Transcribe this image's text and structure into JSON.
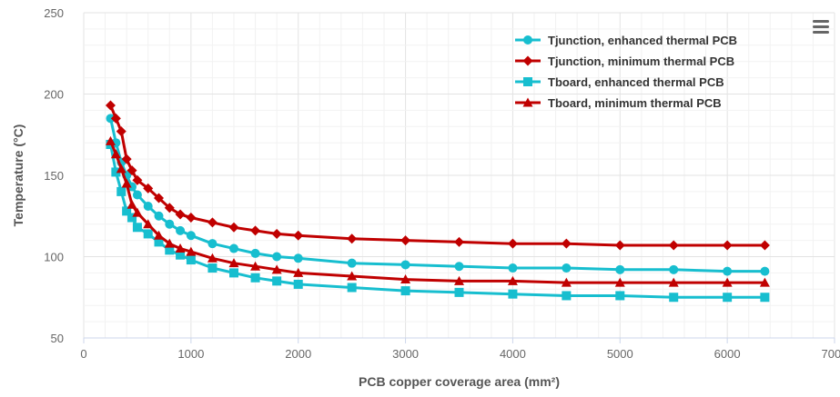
{
  "chart_data": {
    "type": "line",
    "title": "",
    "xlabel": "PCB copper coverage area (mm²)",
    "ylabel": "Temperature (°C)",
    "xlim": [
      0,
      7000
    ],
    "ylim": [
      50,
      250
    ],
    "x_ticks": [
      "0",
      "1000",
      "2000",
      "3000",
      "4000",
      "5000",
      "6000",
      "7000"
    ],
    "y_ticks": [
      "50",
      "100",
      "150",
      "200",
      "250"
    ],
    "grid": true,
    "legend_position": "top-right",
    "series": [
      {
        "name": "Tjunction, enhanced thermal PCB",
        "color": "#17becf",
        "marker": "circle",
        "x": [
          250,
          300,
          350,
          400,
          450,
          500,
          600,
          700,
          800,
          900,
          1000,
          1200,
          1400,
          1600,
          1800,
          2000,
          2500,
          3000,
          3500,
          4000,
          4500,
          5000,
          5500,
          6000,
          6350
        ],
        "y": [
          185,
          170,
          158,
          150,
          143,
          138,
          131,
          125,
          120,
          116,
          113,
          108,
          105,
          102,
          100,
          99,
          96,
          95,
          94,
          93,
          93,
          92,
          92,
          91,
          91
        ]
      },
      {
        "name": "Tjunction, minimum thermal PCB",
        "color": "#c00000",
        "marker": "diamond",
        "x": [
          250,
          300,
          350,
          400,
          450,
          500,
          600,
          700,
          800,
          900,
          1000,
          1200,
          1400,
          1600,
          1800,
          2000,
          2500,
          3000,
          3500,
          4000,
          4500,
          5000,
          5500,
          6000,
          6350
        ],
        "y": [
          193,
          185,
          177,
          160,
          153,
          147,
          142,
          136,
          130,
          126,
          124,
          121,
          118,
          116,
          114,
          113,
          111,
          110,
          109,
          108,
          108,
          107,
          107,
          107,
          107
        ]
      },
      {
        "name": "Tboard, enhanced thermal PCB",
        "color": "#17becf",
        "marker": "square",
        "x": [
          250,
          300,
          350,
          400,
          450,
          500,
          600,
          700,
          800,
          900,
          1000,
          1200,
          1400,
          1600,
          1800,
          2000,
          2500,
          3000,
          3500,
          4000,
          4500,
          5000,
          5500,
          6000,
          6350
        ],
        "y": [
          169,
          152,
          140,
          128,
          124,
          118,
          114,
          109,
          104,
          101,
          98,
          93,
          90,
          87,
          85,
          83,
          81,
          79,
          78,
          77,
          76,
          76,
          75,
          75,
          75
        ]
      },
      {
        "name": "Tboard, minimum thermal PCB",
        "color": "#c00000",
        "marker": "triangle",
        "x": [
          250,
          300,
          350,
          400,
          450,
          500,
          600,
          700,
          800,
          900,
          1000,
          1200,
          1400,
          1600,
          1800,
          2000,
          2500,
          3000,
          3500,
          4000,
          4500,
          5000,
          5500,
          6000,
          6350
        ],
        "y": [
          171,
          163,
          154,
          145,
          132,
          127,
          120,
          113,
          108,
          105,
          103,
          99,
          96,
          94,
          92,
          90,
          88,
          86,
          85,
          85,
          84,
          84,
          84,
          84,
          84
        ]
      }
    ]
  },
  "ui": {
    "menu_icon": "hamburger-menu-icon"
  }
}
